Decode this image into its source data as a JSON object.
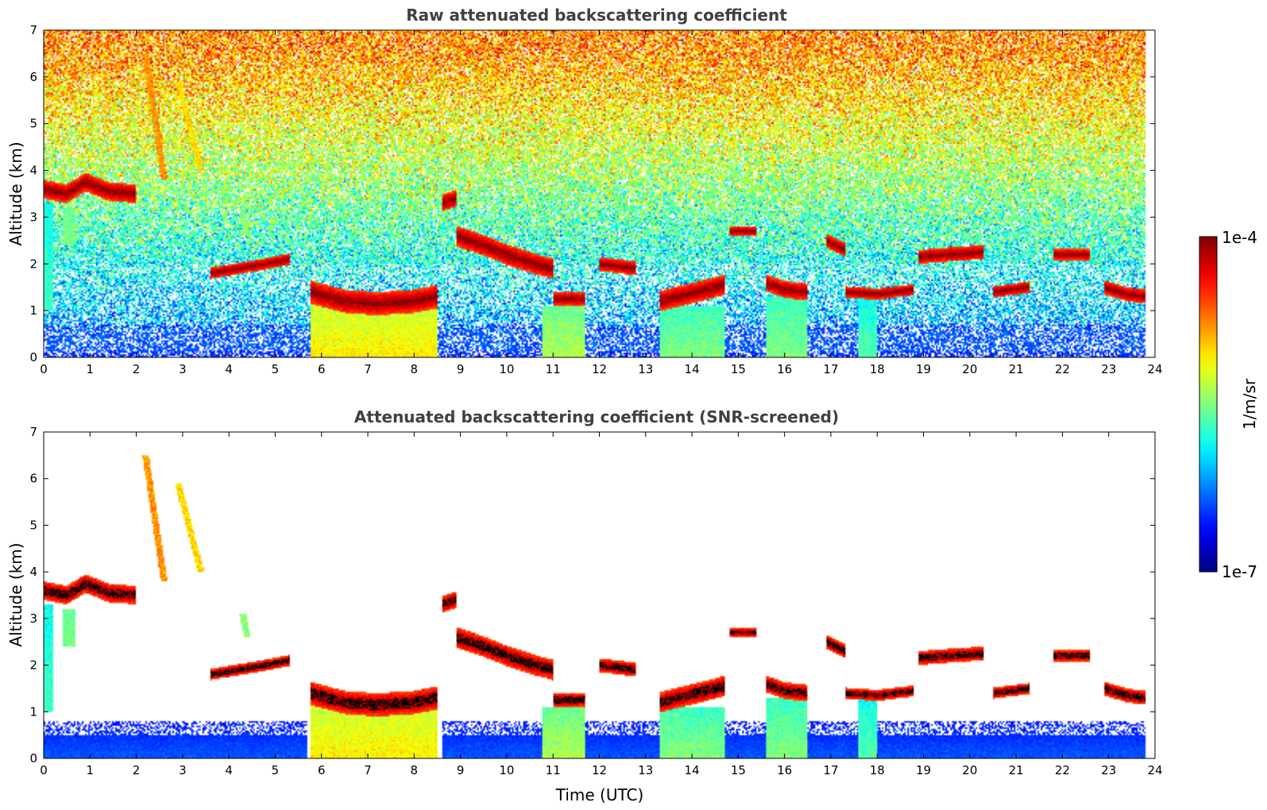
{
  "chart_data": [
    {
      "type": "heatmap",
      "title": "Raw attenuated backscattering coefficient",
      "xlabel": "",
      "ylabel": "Altitude (km)",
      "xlim": [
        0,
        24
      ],
      "ylim": [
        0,
        7
      ],
      "x_ticks": [
        "0",
        "1",
        "2",
        "3",
        "4",
        "5",
        "6",
        "7",
        "8",
        "9",
        "10",
        "11",
        "12",
        "13",
        "14",
        "15",
        "16",
        "17",
        "18",
        "19",
        "20",
        "21",
        "22",
        "23",
        "24"
      ],
      "y_ticks": [
        "0",
        "1",
        "2",
        "3",
        "4",
        "5",
        "6",
        "7"
      ],
      "colormap": "jet",
      "color_scale": "log",
      "screened": false,
      "features": [
        {
          "x0": 5.75,
          "x1": 8.5,
          "y0": 0.0,
          "y1": 1.15,
          "level": 0.6
        },
        {
          "x0": 10.75,
          "x1": 11.7,
          "y0": 0.0,
          "y1": 1.1,
          "level": 0.5
        },
        {
          "x0": 13.3,
          "x1": 14.7,
          "y0": 0.0,
          "y1": 1.1,
          "level": 0.45
        },
        {
          "x0": 15.6,
          "x1": 16.5,
          "y0": 0.0,
          "y1": 1.3,
          "level": 0.45
        },
        {
          "x0": 17.6,
          "x1": 18.0,
          "y0": 0.0,
          "y1": 1.3,
          "level": 0.4
        },
        {
          "x0": 0.0,
          "x1": 0.2,
          "y0": 1.0,
          "y1": 3.3,
          "level": 0.4
        },
        {
          "x0": 0.4,
          "x1": 0.7,
          "y0": 2.4,
          "y1": 3.2,
          "level": 0.5
        }
      ],
      "clouds": [
        {
          "x": [
            0.0,
            0.5,
            0.9,
            1.4,
            2.0
          ],
          "y": [
            3.6,
            3.5,
            3.75,
            3.55,
            3.5
          ],
          "thickness": 0.2
        },
        {
          "x": [
            3.6,
            4.2,
            4.8,
            5.3
          ],
          "y": [
            1.8,
            1.9,
            2.0,
            2.1
          ],
          "thickness": 0.12
        },
        {
          "x": [
            5.75,
            6.5,
            7.2,
            8.0,
            8.5
          ],
          "y": [
            1.4,
            1.2,
            1.15,
            1.2,
            1.3
          ],
          "thickness": 0.25
        },
        {
          "x": [
            8.6,
            8.9
          ],
          "y": [
            3.3,
            3.4
          ],
          "thickness": 0.18
        },
        {
          "x": [
            8.9,
            9.5,
            10.0,
            10.6,
            11.0
          ],
          "y": [
            2.6,
            2.4,
            2.2,
            2.0,
            1.9
          ],
          "thickness": 0.22
        },
        {
          "x": [
            11.0,
            11.7
          ],
          "y": [
            1.25,
            1.25
          ],
          "thickness": 0.15
        },
        {
          "x": [
            12.0,
            12.8
          ],
          "y": [
            2.0,
            1.9
          ],
          "thickness": 0.15
        },
        {
          "x": [
            13.3,
            13.9,
            14.3,
            14.7
          ],
          "y": [
            1.2,
            1.35,
            1.45,
            1.55
          ],
          "thickness": 0.22
        },
        {
          "x": [
            14.8,
            15.4
          ],
          "y": [
            2.7,
            2.7
          ],
          "thickness": 0.1
        },
        {
          "x": [
            15.6,
            16.0,
            16.5
          ],
          "y": [
            1.6,
            1.45,
            1.4
          ],
          "thickness": 0.18
        },
        {
          "x": [
            16.9,
            17.3
          ],
          "y": [
            2.5,
            2.3
          ],
          "thickness": 0.15
        },
        {
          "x": [
            17.3,
            18.0,
            18.8
          ],
          "y": [
            1.4,
            1.35,
            1.45
          ],
          "thickness": 0.12
        },
        {
          "x": [
            18.9,
            19.5,
            20.3
          ],
          "y": [
            2.15,
            2.2,
            2.25
          ],
          "thickness": 0.15
        },
        {
          "x": [
            20.5,
            21.3
          ],
          "y": [
            1.4,
            1.5
          ],
          "thickness": 0.12
        },
        {
          "x": [
            21.8,
            22.6
          ],
          "y": [
            2.2,
            2.2
          ],
          "thickness": 0.12
        },
        {
          "x": [
            22.9,
            23.4,
            23.8
          ],
          "y": [
            1.5,
            1.35,
            1.3
          ],
          "thickness": 0.15
        }
      ],
      "streaks": [
        {
          "x": [
            2.2,
            2.6
          ],
          "y": [
            6.5,
            3.8
          ],
          "level": 0.7
        },
        {
          "x": [
            2.9,
            3.4
          ],
          "y": [
            5.9,
            4.0
          ],
          "level": 0.62
        },
        {
          "x": [
            4.3,
            4.4
          ],
          "y": [
            3.1,
            2.6
          ],
          "level": 0.45
        }
      ]
    },
    {
      "type": "heatmap",
      "title": "Attenuated backscattering coefficient (SNR-screened)",
      "xlabel": "Time (UTC)",
      "ylabel": "Altitude (km)",
      "xlim": [
        0,
        24
      ],
      "ylim": [
        0,
        7
      ],
      "x_ticks": [
        "0",
        "1",
        "2",
        "3",
        "4",
        "5",
        "6",
        "7",
        "8",
        "9",
        "10",
        "11",
        "12",
        "13",
        "14",
        "15",
        "16",
        "17",
        "18",
        "19",
        "20",
        "21",
        "22",
        "23",
        "24"
      ],
      "y_ticks": [
        "0",
        "1",
        "2",
        "3",
        "4",
        "5",
        "6",
        "7"
      ],
      "colormap": "jet",
      "color_scale": "log",
      "screened": true
    }
  ],
  "colorbar": {
    "label": "1/m/sr",
    "max_label": "1e-4",
    "min_label": "1e-7",
    "scale": "log"
  }
}
